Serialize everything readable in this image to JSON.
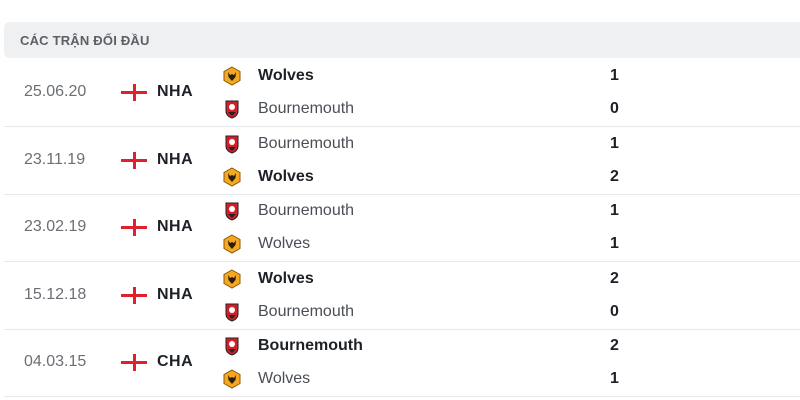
{
  "header": {
    "title": "CÁC TRẬN ĐỐI ĐẦU"
  },
  "colors": {
    "england_flag": "#e0202d",
    "wolves": "#f5a623",
    "bournemouth": "#d61e2a"
  },
  "matches": [
    {
      "date": "25.06.20",
      "competition": "NHA",
      "home": {
        "name": "Wolves",
        "logo": "wolves-logo",
        "score": "1",
        "winner": true
      },
      "away": {
        "name": "Bournemouth",
        "logo": "bournemouth-logo",
        "score": "0",
        "winner": false
      }
    },
    {
      "date": "23.11.19",
      "competition": "NHA",
      "home": {
        "name": "Bournemouth",
        "logo": "bournemouth-logo",
        "score": "1",
        "winner": false
      },
      "away": {
        "name": "Wolves",
        "logo": "wolves-logo",
        "score": "2",
        "winner": true
      }
    },
    {
      "date": "23.02.19",
      "competition": "NHA",
      "home": {
        "name": "Bournemouth",
        "logo": "bournemouth-logo",
        "score": "1",
        "winner": false
      },
      "away": {
        "name": "Wolves",
        "logo": "wolves-logo",
        "score": "1",
        "winner": false
      }
    },
    {
      "date": "15.12.18",
      "competition": "NHA",
      "home": {
        "name": "Wolves",
        "logo": "wolves-logo",
        "score": "2",
        "winner": true
      },
      "away": {
        "name": "Bournemouth",
        "logo": "bournemouth-logo",
        "score": "0",
        "winner": false
      }
    },
    {
      "date": "04.03.15",
      "competition": "CHA",
      "home": {
        "name": "Bournemouth",
        "logo": "bournemouth-logo",
        "score": "2",
        "winner": true
      },
      "away": {
        "name": "Wolves",
        "logo": "wolves-logo",
        "score": "1",
        "winner": false
      }
    }
  ]
}
